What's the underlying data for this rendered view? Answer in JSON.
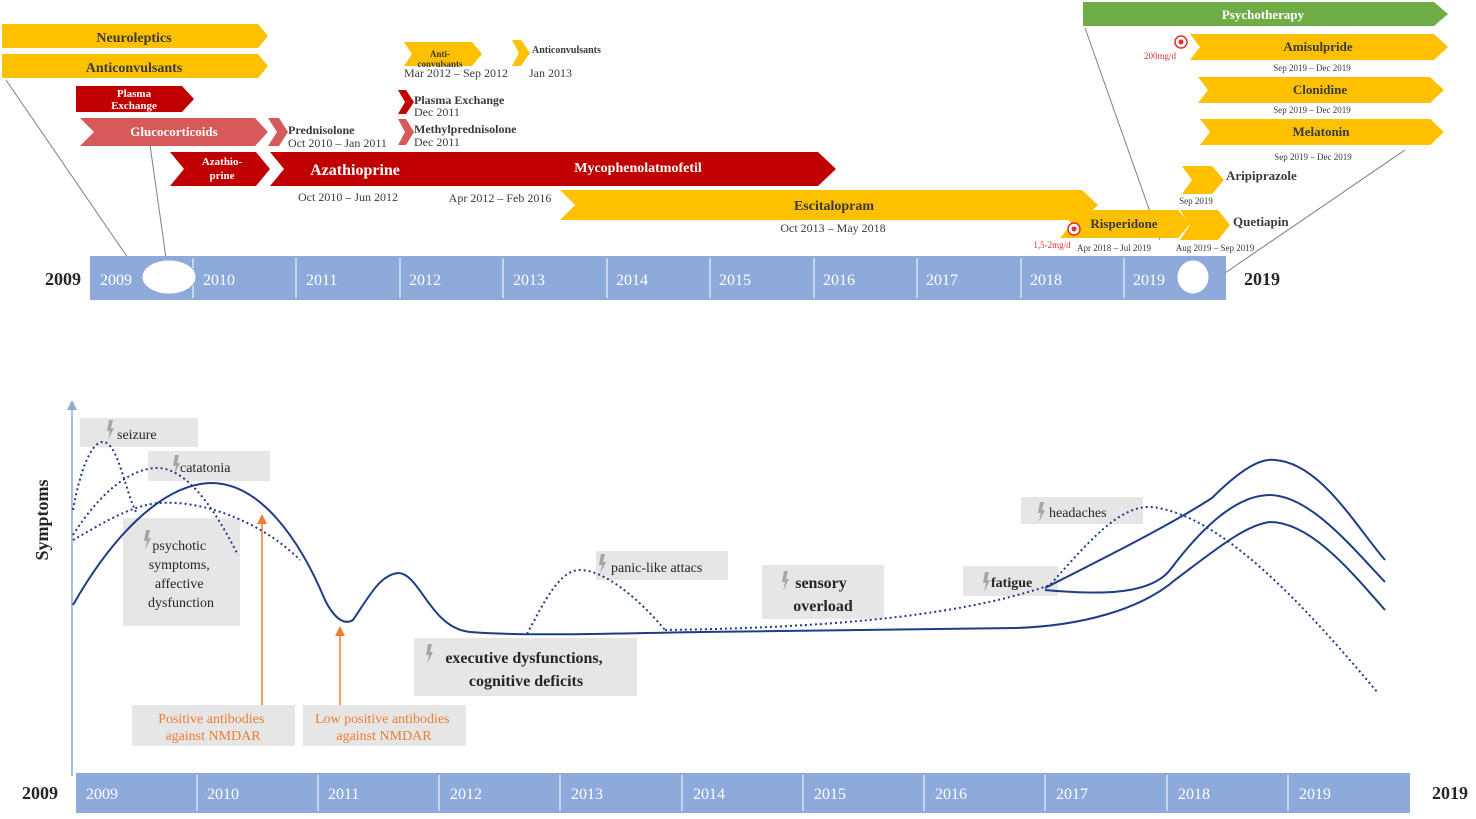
{
  "top_timeline": {
    "start_label": "2009",
    "end_label": "2019",
    "years": [
      "2009",
      "2010",
      "2011",
      "2012",
      "2013",
      "2014",
      "2015",
      "2016",
      "2017",
      "2018",
      "2019"
    ]
  },
  "treatments": [
    {
      "label": "Neuroleptics",
      "color": "#ffc000"
    },
    {
      "label": "Anticonvulsants",
      "color": "#ffc000"
    },
    {
      "label": "Plasma Exchange",
      "color": "#c00000"
    },
    {
      "label": "Glucocorticoids",
      "color": "#d75a5a"
    },
    {
      "label": "Azathio-prine",
      "color": "#c00000"
    },
    {
      "label": "Prednisolone",
      "dates": "Oct 2010 – Jan 2011",
      "color": "#d75a5a"
    },
    {
      "label": "Azathioprine",
      "dates": "Oct 2010 – Jun 2012",
      "color": "#c00000"
    },
    {
      "label": "Anti-convulsants",
      "dates": "Mar 2012 – Sep 2012",
      "color": "#ffc000"
    },
    {
      "label": "Anticonvulsants",
      "dates": "Jan 2013",
      "color": "#ffc000"
    },
    {
      "label": "Plasma Exchange",
      "dates": "Dec 2011",
      "color": "#c00000"
    },
    {
      "label": "Methylprednisolone",
      "dates": "Dec 2011",
      "color": "#d75a5a"
    },
    {
      "label": "Mycophenolatmofetil",
      "dates": "Apr 2012 – Feb 2016",
      "color": "#c00000"
    },
    {
      "label": "Escitalopram",
      "dates": "Oct 2013 – May 2018",
      "color": "#ffc000"
    },
    {
      "label": "Risperidone",
      "dates": "Apr 2018 – Jul 2019",
      "dose": "1,5-2mg/d",
      "color": "#ffc000"
    },
    {
      "label": "Psychotherapy",
      "color": "#70ad47"
    },
    {
      "label": "Amisulpride",
      "dates": "Sep 2019 – Dec 2019",
      "dose": "200mg/d",
      "color": "#ffc000"
    },
    {
      "label": "Clonidine",
      "dates": "Sep 2019 – Dec 2019",
      "color": "#ffc000"
    },
    {
      "label": "Melatonin",
      "dates": "Sep 2019 – Dec 2019",
      "color": "#ffc000"
    },
    {
      "label": "Aripiprazole",
      "dates": "Sep 2019",
      "color": "#ffc000"
    },
    {
      "label": "Quetiapin",
      "dates": "Aug 2019 – Sep 2019",
      "color": "#ffc000"
    }
  ],
  "symptom_chart": {
    "ylabel": "Symptoms",
    "start_label": "2009",
    "end_label": "2019",
    "years": [
      "2009",
      "2010",
      "2011",
      "2012",
      "2013",
      "2014",
      "2015",
      "2016",
      "2017",
      "2018",
      "2019"
    ],
    "symptoms": [
      {
        "label": "seizure"
      },
      {
        "label": "catatonia"
      },
      {
        "label": "psychotic symptoms, affective dysfunction"
      },
      {
        "label": "panic-like  attacs"
      },
      {
        "label": "sensory overload"
      },
      {
        "label": "executive dysfunctions, cognitive deficits"
      },
      {
        "label": "fatigue"
      },
      {
        "label": "headaches"
      }
    ],
    "annotations": [
      {
        "label": "Positive antibodies against NMDAR"
      },
      {
        "label": "Low positive antibodies against NMDAR"
      }
    ],
    "colors": {
      "line": "#1f3c88",
      "annotation": "#ed7d31",
      "axis_band": "#8eaadb",
      "box": "#e7e6e6"
    }
  }
}
